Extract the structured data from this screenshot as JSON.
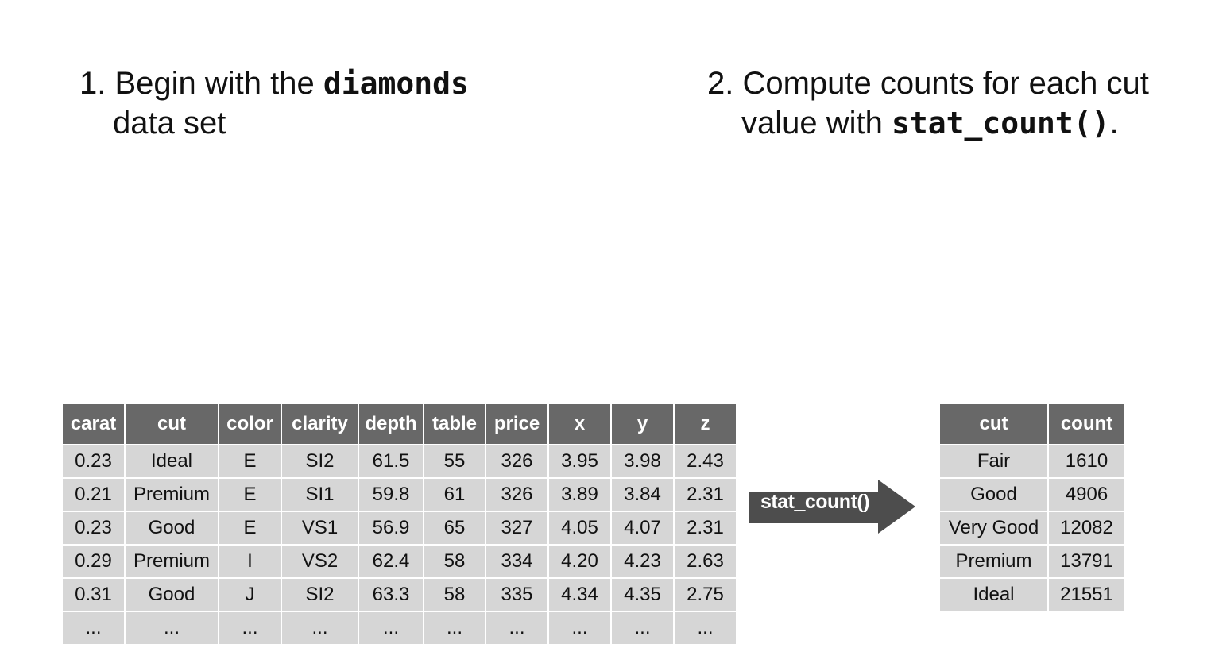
{
  "step1": {
    "number": "1.",
    "text_before": " Begin with the ",
    "code": "diamonds",
    "line2": "data set"
  },
  "step2": {
    "number": "2.",
    "line1": " Compute counts for each cut",
    "text_before": "value with ",
    "code": "stat_count()",
    "text_after": "."
  },
  "diamonds_table": {
    "columns": [
      "carat",
      "cut",
      "color",
      "clarity",
      "depth",
      "table",
      "price",
      "x",
      "y",
      "z"
    ],
    "rows": [
      [
        "0.23",
        "Ideal",
        "E",
        "SI2",
        "61.5",
        "55",
        "326",
        "3.95",
        "3.98",
        "2.43"
      ],
      [
        "0.21",
        "Premium",
        "E",
        "SI1",
        "59.8",
        "61",
        "326",
        "3.89",
        "3.84",
        "2.31"
      ],
      [
        "0.23",
        "Good",
        "E",
        "VS1",
        "56.9",
        "65",
        "327",
        "4.05",
        "4.07",
        "2.31"
      ],
      [
        "0.29",
        "Premium",
        "I",
        "VS2",
        "62.4",
        "58",
        "334",
        "4.20",
        "4.23",
        "2.63"
      ],
      [
        "0.31",
        "Good",
        "J",
        "SI2",
        "63.3",
        "58",
        "335",
        "4.34",
        "4.35",
        "2.75"
      ],
      [
        "...",
        "...",
        "...",
        "...",
        "...",
        "...",
        "...",
        "...",
        "...",
        "..."
      ]
    ]
  },
  "arrow": {
    "label": "stat_count()",
    "color": "#4d4d4d"
  },
  "counts_table": {
    "columns": [
      "cut",
      "count"
    ],
    "rows": [
      [
        "Fair",
        "1610"
      ],
      [
        "Good",
        "4906"
      ],
      [
        "Very Good",
        "12082"
      ],
      [
        "Premium",
        "13791"
      ],
      [
        "Ideal",
        "21551"
      ]
    ]
  },
  "colors": {
    "header_bg": "#686868",
    "cell_bg": "#d6d6d6"
  }
}
